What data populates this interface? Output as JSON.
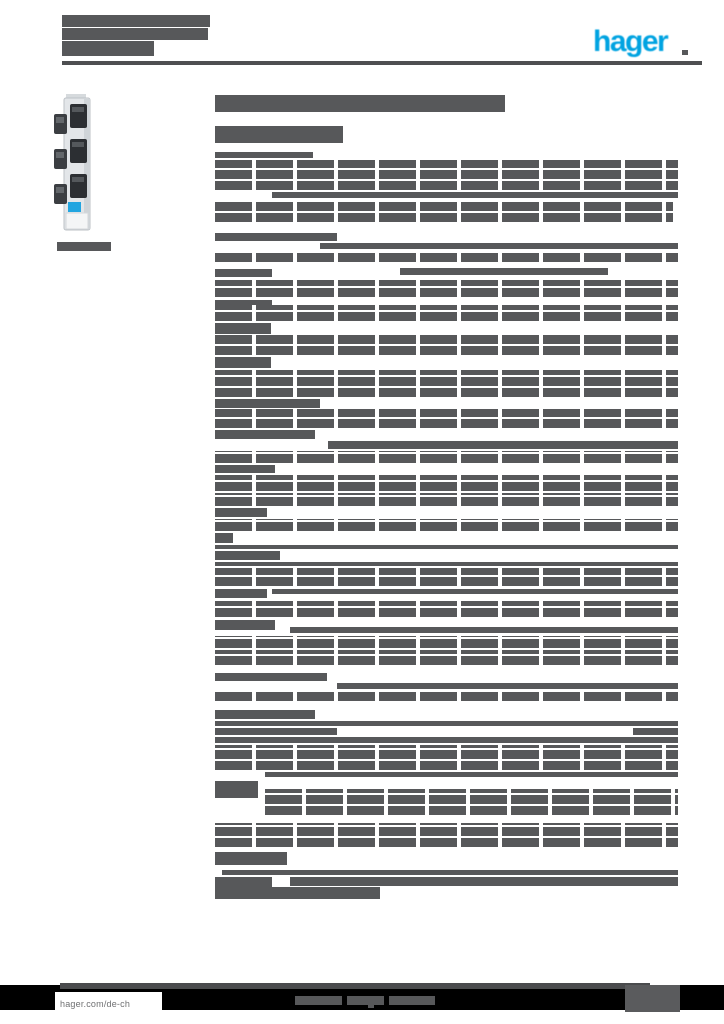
{
  "colors": {
    "brand_blue": "#00a3e1",
    "redaction_gray": "#57585a",
    "footer_black": "#000000",
    "page_background": "#ffffff"
  },
  "header": {
    "logo_text": "hager"
  },
  "footer": {
    "url": "hager.com/de-ch"
  },
  "product_image": {
    "semantic": "vertical-busbar-device-with-three-clamp-terminals-and-blue-label"
  },
  "redaction": {
    "note": "all document text is rasterized into bars; geometry in px [x,y,w,h,style]",
    "bars": [
      [
        62,
        15,
        148,
        12,
        "s"
      ],
      [
        62,
        28,
        146,
        12,
        "s"
      ],
      [
        62,
        41,
        92,
        15,
        "s"
      ],
      [
        57,
        242,
        54,
        9,
        "s"
      ],
      [
        215,
        95,
        290,
        17,
        "s"
      ],
      [
        215,
        126,
        128,
        17,
        "s"
      ],
      [
        215,
        152,
        98,
        6,
        "s"
      ],
      [
        215,
        160,
        463,
        30,
        "t"
      ],
      [
        272,
        192,
        406,
        6,
        "s"
      ],
      [
        215,
        201,
        458,
        21,
        "t"
      ],
      [
        215,
        233,
        122,
        8,
        "s"
      ],
      [
        320,
        243,
        358,
        6,
        "s"
      ],
      [
        215,
        252,
        463,
        10,
        "t"
      ],
      [
        215,
        269,
        57,
        8,
        "s"
      ],
      [
        400,
        268,
        208,
        7,
        "s"
      ],
      [
        215,
        280,
        463,
        17,
        "t"
      ],
      [
        215,
        300,
        57,
        9,
        "s"
      ],
      [
        215,
        305,
        463,
        16,
        "t"
      ],
      [
        215,
        323,
        56,
        11,
        "s"
      ],
      [
        215,
        335,
        463,
        20,
        "t"
      ],
      [
        215,
        357,
        56,
        11,
        "s"
      ],
      [
        215,
        370,
        463,
        27,
        "t"
      ],
      [
        215,
        399,
        105,
        9,
        "s"
      ],
      [
        215,
        409,
        463,
        19,
        "t"
      ],
      [
        215,
        430,
        100,
        9,
        "s"
      ],
      [
        328,
        441,
        350,
        8,
        "s"
      ],
      [
        215,
        451,
        463,
        12,
        "t"
      ],
      [
        215,
        465,
        60,
        8,
        "s"
      ],
      [
        215,
        475,
        463,
        16,
        "t"
      ],
      [
        215,
        493,
        463,
        13,
        "t"
      ],
      [
        215,
        508,
        52,
        9,
        "s"
      ],
      [
        215,
        519,
        463,
        12,
        "t"
      ],
      [
        215,
        533,
        18,
        10,
        "s"
      ],
      [
        215,
        545,
        463,
        4,
        "s"
      ],
      [
        215,
        551,
        65,
        9,
        "s"
      ],
      [
        215,
        562,
        463,
        4,
        "s"
      ],
      [
        215,
        568,
        463,
        18,
        "t"
      ],
      [
        272,
        589,
        406,
        5,
        "s"
      ],
      [
        215,
        589,
        52,
        9,
        "s"
      ],
      [
        215,
        601,
        463,
        16,
        "t"
      ],
      [
        215,
        620,
        60,
        10,
        "s"
      ],
      [
        290,
        627,
        388,
        6,
        "s"
      ],
      [
        215,
        636,
        463,
        12,
        "t"
      ],
      [
        215,
        650,
        463,
        15,
        "t"
      ],
      [
        215,
        673,
        112,
        8,
        "s"
      ],
      [
        337,
        683,
        341,
        6,
        "s"
      ],
      [
        215,
        692,
        463,
        9,
        "t"
      ],
      [
        215,
        710,
        100,
        9,
        "s"
      ],
      [
        215,
        721,
        463,
        5,
        "s"
      ],
      [
        215,
        728,
        122,
        7,
        "s"
      ],
      [
        633,
        728,
        45,
        7,
        "s"
      ],
      [
        215,
        737,
        463,
        6,
        "s"
      ],
      [
        215,
        745,
        463,
        25,
        "t"
      ],
      [
        265,
        772,
        413,
        5,
        "s"
      ],
      [
        215,
        781,
        43,
        17,
        "s"
      ],
      [
        265,
        789,
        413,
        26,
        "t"
      ],
      [
        215,
        823,
        463,
        24,
        "t"
      ],
      [
        215,
        852,
        72,
        13,
        "s"
      ],
      [
        222,
        870,
        456,
        5,
        "s"
      ],
      [
        215,
        877,
        57,
        10,
        "s"
      ],
      [
        290,
        877,
        388,
        9,
        "s"
      ],
      [
        215,
        887,
        165,
        12,
        "s"
      ],
      [
        295,
        996,
        47,
        9,
        "s"
      ],
      [
        347,
        996,
        37,
        9,
        "s"
      ],
      [
        389,
        996,
        46,
        9,
        "s"
      ],
      [
        368,
        1004,
        6,
        4,
        "s"
      ]
    ]
  }
}
